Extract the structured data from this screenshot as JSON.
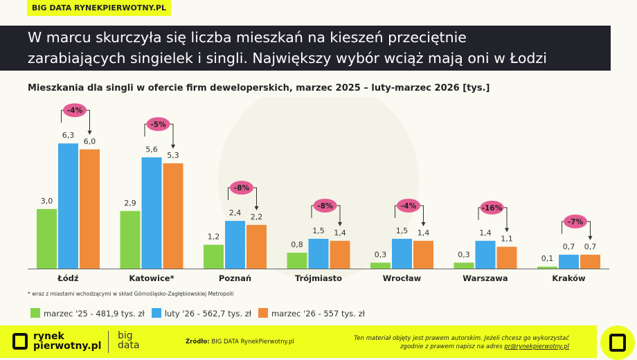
{
  "tag": "BIG DATA RYNEKPIERWOTNY.PL",
  "headline": [
    "W marcu skurczyła się liczba mieszkań na kieszeń przeciętnie",
    "zarabiających singielek i singli. Największy wybór wciąż mają oni w Łodzi"
  ],
  "chart_data": {
    "type": "bar",
    "title": "Mieszkania dla singli w ofercie firm deweloperskich, marzec 2025 – luty-marzec 2026 [tys.]",
    "categories": [
      "Łódź",
      "Katowice*",
      "Poznań",
      "Trójmiasto",
      "Wrocław",
      "Warszawa",
      "Kraków"
    ],
    "series": [
      {
        "name": "marzec '25 - 481,9 tys. zł",
        "color": "#86d34b",
        "values": [
          3.0,
          2.9,
          1.2,
          0.8,
          0.3,
          0.3,
          0.1
        ],
        "labels": [
          "3,0",
          "2,9",
          "1,2",
          "0,8",
          "0,3",
          "0,3",
          "0,1"
        ]
      },
      {
        "name": "luty '26 - 562,7 tys. zł",
        "color": "#3fa9ea",
        "values": [
          6.3,
          5.6,
          2.4,
          1.5,
          1.5,
          1.4,
          0.7
        ],
        "labels": [
          "6,3",
          "5,6",
          "2,4",
          "1,5",
          "1,5",
          "1,4",
          "0,7"
        ]
      },
      {
        "name": "marzec '26 - 557 tys. zł",
        "color": "#f08b3a",
        "values": [
          6.0,
          5.3,
          2.2,
          1.4,
          1.4,
          1.1,
          0.7
        ],
        "labels": [
          "6,0",
          "5,3",
          "2,2",
          "1,4",
          "1,4",
          "1,1",
          "0,7"
        ]
      }
    ],
    "changes": [
      "-4%",
      "-5%",
      "-8%",
      "-8%",
      "-4%",
      "-16%",
      "-7%"
    ],
    "change_color": "#e35d92",
    "ylim": [
      0,
      6.5
    ],
    "grid": false
  },
  "note": "* wraz z miastami wchodzącymi w skład Górnośląsko-Zagłębiowskiej Metropolii",
  "footer": {
    "logo_line1": "rynek",
    "logo_line2": "pierwotny.pl",
    "bd1": "big",
    "bd2": "data",
    "source_label": "Źródło:",
    "source": " BIG DATA RynekPierwotny.pl",
    "copy1": "Ten materiał objęty jest prawem autorskim. Jeżeli chcesz go wykorzystać",
    "copy2": "zgodnie z prawem napisz na adres ",
    "email": "pr@rynekpierwotny.pl"
  },
  "colors": {
    "accent": "#eeff1e",
    "dark": "#22222b"
  }
}
